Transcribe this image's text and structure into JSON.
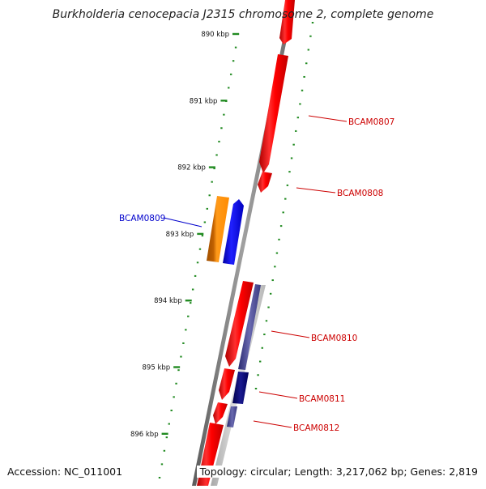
{
  "title": "Burkholderia cenocepacia J2315 chromosome 2, complete genome",
  "accession": "Accession: NC_011001",
  "summary": "Topology: circular; Length: 3,217,062 bp; Genes: 2,819",
  "colors": {
    "forward_gene": "#ff0000",
    "reverse_gene": "#0000ff",
    "highlight_gene": "#ff8c00",
    "navy_feature": "#000080",
    "grey_feature": "#c0c0c0",
    "backbone": "#808080",
    "tick": "#228b22",
    "label_red": "#cc0000",
    "label_blue": "#0000cc"
  },
  "scale": {
    "unit": "kbp",
    "ticks": [
      {
        "value": 890,
        "label": "890 kbp"
      },
      {
        "value": 891,
        "label": "891 kbp"
      },
      {
        "value": 892,
        "label": "892 kbp"
      },
      {
        "value": 893,
        "label": "893 kbp"
      },
      {
        "value": 894,
        "label": "894 kbp"
      },
      {
        "value": 895,
        "label": "895 kbp"
      },
      {
        "value": 896,
        "label": "896 kbp"
      }
    ]
  },
  "genes": [
    {
      "name": "BCAM0807",
      "label": "BCAM0807",
      "strand": "+",
      "color": "red"
    },
    {
      "name": "BCAM0808",
      "label": "BCAM0808",
      "strand": "+",
      "color": "red"
    },
    {
      "name": "BCAM0809",
      "label": "BCAM0809",
      "strand": "-",
      "color": "blue"
    },
    {
      "name": "BCAM0810",
      "label": "BCAM0810",
      "strand": "+",
      "color": "red"
    },
    {
      "name": "BCAM0811",
      "label": "BCAM0811",
      "strand": "+",
      "color": "red"
    },
    {
      "name": "BCAM0812",
      "label": "BCAM0812",
      "strand": "+",
      "color": "red"
    }
  ]
}
